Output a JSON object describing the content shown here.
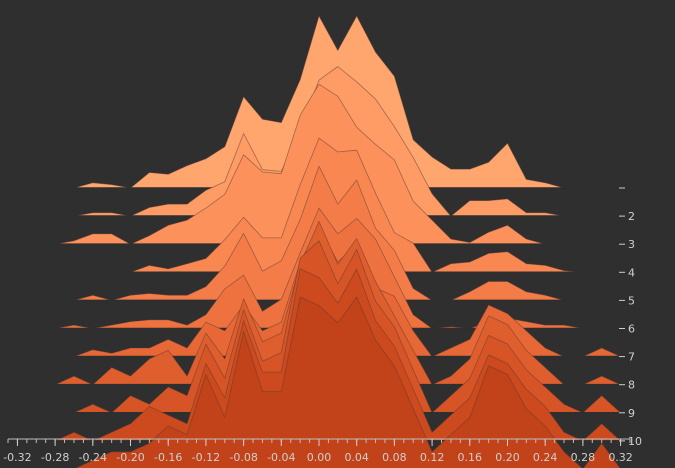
{
  "chart_data": {
    "type": "area",
    "title": "",
    "xlabel": "",
    "ylabel": "",
    "x": [
      -0.28,
      -0.26,
      -0.24,
      -0.22,
      -0.2,
      -0.18,
      -0.16,
      -0.14,
      -0.12,
      -0.1,
      -0.08,
      -0.06,
      -0.04,
      -0.02,
      0.0,
      0.02,
      0.04,
      0.06,
      0.08,
      0.1,
      0.12,
      0.14,
      0.16,
      0.18,
      0.2,
      0.22,
      0.24,
      0.26,
      0.28,
      0.3,
      0.32
    ],
    "xlim": [
      -0.33,
      0.33
    ],
    "x_ticks": [
      "-0.32",
      "-0.28",
      "-0.24",
      "-0.20",
      "-0.16",
      "-0.12",
      "-0.08",
      "-0.04",
      "0.00",
      "0.04",
      "0.08",
      "0.12",
      "0.16",
      "0.20",
      "0.24",
      "0.28",
      "0.32"
    ],
    "y_ticks": [
      "",
      "2",
      "3",
      "4",
      "5",
      "6",
      "7",
      "8",
      "9",
      "10"
    ],
    "ridge_height_range": [
      0,
      1
    ],
    "ridge_order": "back_to_front",
    "grid": false,
    "legend": "none",
    "colors": [
      "#ffa56e",
      "#ff9b65",
      "#fc915b",
      "#f98752",
      "#f47c48",
      "#ee723f",
      "#e76836",
      "#df5e2e",
      "#d65426",
      "#cc4a1e",
      "#c2421a"
    ],
    "series": [
      {
        "values": [
          0.0,
          0.0,
          0.03,
          0.02,
          0.0,
          0.09,
          0.08,
          0.13,
          0.17,
          0.24,
          0.53,
          0.4,
          0.38,
          0.63,
          1.0,
          0.8,
          1.0,
          0.79,
          0.65,
          0.28,
          0.18,
          0.11,
          0.11,
          0.15,
          0.26,
          0.05,
          0.03,
          0.0,
          0.0,
          0.0,
          0.0
        ]
      },
      {
        "values": [
          0.0,
          0.0,
          0.02,
          0.02,
          0.0,
          0.05,
          0.07,
          0.07,
          0.15,
          0.2,
          0.48,
          0.27,
          0.26,
          0.5,
          0.79,
          0.87,
          0.78,
          0.68,
          0.52,
          0.34,
          0.13,
          0.0,
          0.09,
          0.09,
          0.1,
          0.02,
          0.02,
          0.0,
          0.0,
          0.0,
          0.0
        ]
      },
      {
        "values": [
          0.0,
          0.02,
          0.06,
          0.06,
          0.0,
          0.05,
          0.11,
          0.14,
          0.21,
          0.29,
          0.52,
          0.42,
          0.41,
          0.75,
          0.93,
          0.86,
          0.68,
          0.58,
          0.49,
          0.25,
          0.14,
          0.03,
          0.01,
          0.07,
          0.11,
          0.03,
          0.0,
          0.0,
          0.0,
          0.0,
          0.0
        ]
      },
      {
        "values": [
          0.0,
          0.0,
          0.0,
          0.0,
          0.0,
          0.04,
          0.02,
          0.05,
          0.08,
          0.19,
          0.32,
          0.2,
          0.2,
          0.51,
          0.78,
          0.7,
          0.71,
          0.46,
          0.23,
          0.17,
          0.0,
          0.05,
          0.06,
          0.11,
          0.12,
          0.05,
          0.04,
          0.01,
          0.0,
          0.0,
          0.0
        ]
      },
      {
        "values": [
          0.0,
          0.0,
          0.03,
          0.0,
          0.03,
          0.04,
          0.03,
          0.03,
          0.08,
          0.2,
          0.39,
          0.17,
          0.23,
          0.47,
          0.78,
          0.56,
          0.7,
          0.42,
          0.29,
          0.07,
          0.0,
          0.0,
          0.05,
          0.11,
          0.11,
          0.05,
          0.03,
          0.0,
          0.0,
          0.0,
          0.0
        ]
      },
      {
        "values": [
          0.0,
          0.02,
          0.0,
          0.02,
          0.04,
          0.05,
          0.05,
          0.02,
          0.08,
          0.23,
          0.31,
          0.1,
          0.17,
          0.44,
          0.7,
          0.55,
          0.64,
          0.52,
          0.3,
          0.08,
          0.0,
          0.01,
          0.0,
          0.04,
          0.06,
          0.04,
          0.02,
          0.02,
          0.0,
          0.0,
          0.0
        ]
      },
      {
        "values": [
          0.0,
          0.0,
          0.04,
          0.02,
          0.05,
          0.05,
          0.1,
          0.05,
          0.2,
          0.15,
          0.3,
          0.15,
          0.2,
          0.55,
          0.75,
          0.55,
          0.65,
          0.4,
          0.35,
          0.15,
          0.0,
          0.05,
          0.1,
          0.3,
          0.25,
          0.15,
          0.05,
          0.0,
          0.0,
          0.05,
          0.0
        ]
      },
      {
        "values": [
          0.0,
          0.05,
          0.0,
          0.1,
          0.05,
          0.15,
          0.2,
          0.05,
          0.3,
          0.15,
          0.5,
          0.25,
          0.3,
          0.7,
          0.95,
          0.7,
          0.85,
          0.6,
          0.4,
          0.2,
          0.0,
          0.05,
          0.15,
          0.4,
          0.35,
          0.2,
          0.1,
          0.0,
          0.0,
          0.05,
          0.0
        ]
      },
      {
        "values": [
          0.0,
          0.0,
          0.05,
          0.0,
          0.1,
          0.05,
          0.15,
          0.1,
          0.4,
          0.2,
          0.6,
          0.3,
          0.35,
          0.9,
          1.0,
          0.75,
          0.95,
          0.65,
          0.5,
          0.25,
          0.0,
          0.1,
          0.2,
          0.45,
          0.4,
          0.25,
          0.15,
          0.05,
          0.0,
          0.1,
          0.0
        ]
      },
      {
        "values": [
          0.0,
          0.05,
          0.0,
          0.05,
          0.1,
          0.2,
          0.15,
          0.1,
          0.45,
          0.25,
          0.7,
          0.4,
          0.4,
          1.0,
          0.95,
          0.8,
          1.0,
          0.7,
          0.55,
          0.3,
          0.05,
          0.15,
          0.25,
          0.5,
          0.45,
          0.3,
          0.2,
          0.05,
          0.0,
          0.1,
          0.0
        ]
      },
      {
        "values": [
          0.0,
          0.0,
          0.05,
          0.1,
          0.1,
          0.15,
          0.25,
          0.2,
          0.55,
          0.3,
          0.8,
          0.45,
          0.45,
          1.0,
          0.95,
          0.85,
          1.0,
          0.75,
          0.6,
          0.35,
          0.1,
          0.2,
          0.3,
          0.6,
          0.55,
          0.35,
          0.25,
          0.1,
          0.0,
          0.15,
          0.0
        ]
      }
    ]
  }
}
